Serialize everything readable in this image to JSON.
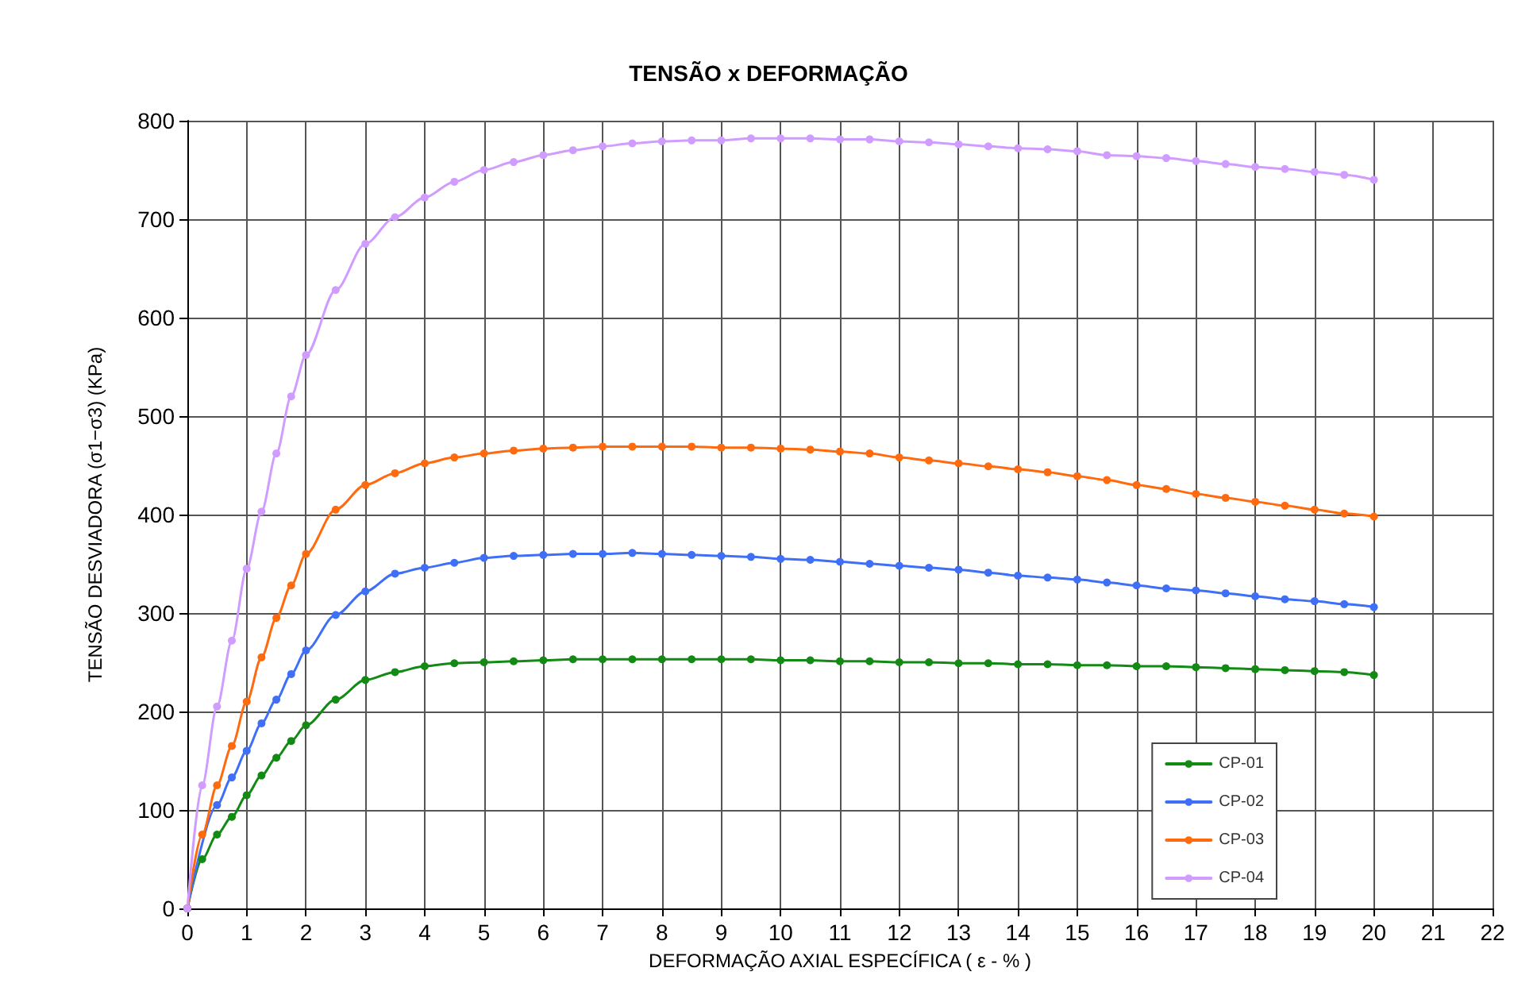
{
  "chart_data": {
    "type": "line",
    "title": "TENSÃO x DEFORMAÇÃO",
    "xlabel": "DEFORMAÇÃO AXIAL ESPECÍFICA ( ε - % )",
    "ylabel": "TENSÃO DESVIADORA (σ1−σ3) (KPa)",
    "x": [
      0,
      0.25,
      0.5,
      0.75,
      1,
      1.25,
      1.5,
      1.75,
      2,
      2.5,
      3,
      3.5,
      4,
      4.5,
      5,
      5.5,
      6,
      6.5,
      7,
      7.5,
      8,
      8.5,
      9,
      9.5,
      10,
      10.5,
      11,
      11.5,
      12,
      12.5,
      13,
      13.5,
      14,
      14.5,
      15,
      15.5,
      16,
      16.5,
      17,
      17.5,
      18,
      18.5,
      19,
      19.5,
      20
    ],
    "series": [
      {
        "name": "CP-01",
        "color": "#138a13",
        "values": [
          0,
          50,
          75,
          93,
          115,
          135,
          153,
          170,
          186,
          212,
          232,
          240,
          246,
          249,
          250,
          251,
          252,
          253,
          253,
          253,
          253,
          253,
          253,
          253,
          252,
          252,
          251,
          251,
          250,
          250,
          249,
          249,
          248,
          248,
          247,
          247,
          246,
          246,
          245,
          244,
          243,
          242,
          241,
          240,
          237
        ]
      },
      {
        "name": "CP-02",
        "color": "#3f6ff6",
        "values": [
          0,
          null,
          105,
          133,
          160,
          188,
          212,
          238,
          262,
          298,
          322,
          340,
          346,
          351,
          356,
          358,
          359,
          360,
          360,
          361,
          360,
          359,
          358,
          357,
          355,
          354,
          352,
          350,
          348,
          346,
          344,
          341,
          338,
          336,
          334,
          331,
          328,
          325,
          323,
          320,
          317,
          314,
          312,
          309,
          306
        ]
      },
      {
        "name": "CP-03",
        "color": "#ff6a0f",
        "values": [
          0,
          75,
          125,
          165,
          210,
          255,
          295,
          328,
          360,
          405,
          430,
          442,
          452,
          458,
          462,
          465,
          467,
          468,
          469,
          469,
          469,
          469,
          468,
          468,
          467,
          466,
          464,
          462,
          458,
          455,
          452,
          449,
          446,
          443,
          439,
          435,
          430,
          426,
          421,
          417,
          413,
          409,
          405,
          401,
          398
        ]
      },
      {
        "name": "CP-04",
        "color": "#d09cff",
        "values": [
          0,
          125,
          205,
          272,
          345,
          403,
          462,
          520,
          562,
          628,
          675,
          702,
          722,
          738,
          750,
          758,
          765,
          770,
          774,
          777,
          779,
          780,
          780,
          782,
          782,
          782,
          781,
          781,
          779,
          778,
          776,
          774,
          772,
          771,
          769,
          765,
          764,
          762,
          759,
          756,
          753,
          751,
          748,
          745,
          740
        ]
      }
    ],
    "xlim": [
      0,
      22
    ],
    "xticks": [
      0,
      1,
      2,
      3,
      4,
      5,
      6,
      7,
      8,
      9,
      10,
      11,
      12,
      13,
      14,
      15,
      16,
      17,
      18,
      19,
      20,
      21,
      22
    ],
    "ylim": [
      0,
      800
    ],
    "yticks": [
      0,
      100,
      200,
      300,
      400,
      500,
      600,
      700,
      800
    ],
    "grid": true,
    "legend": "bottom right",
    "marker": "circle",
    "line_style": "solid"
  }
}
